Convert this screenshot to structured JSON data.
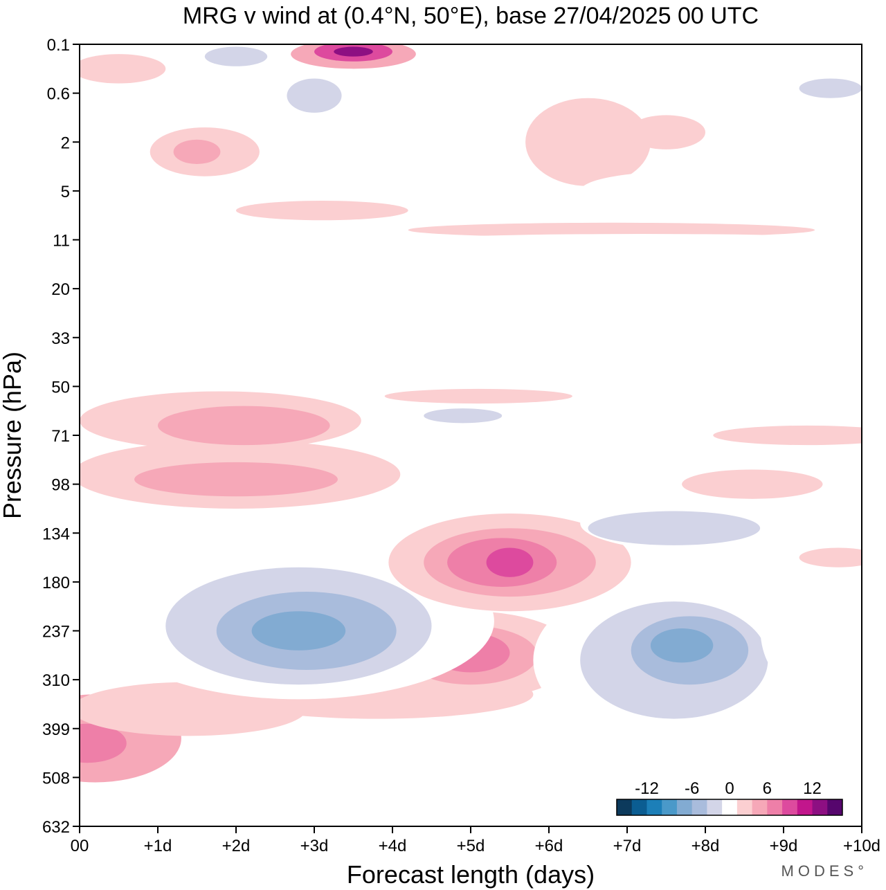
{
  "chart_data": {
    "type": "heatmap",
    "title": "MRG v wind at (0.4°N, 50°E),  base 27/04/2025  00 UTC",
    "xlabel": "Forecast length (days)",
    "ylabel": "Pressure (hPa)",
    "xlim": [
      0,
      10
    ],
    "x_ticks": [
      0,
      1,
      2,
      3,
      4,
      5,
      6,
      7,
      8,
      9,
      10
    ],
    "x_tick_labels": [
      "00",
      "+1d",
      "+2d",
      "+3d",
      "+4d",
      "+5d",
      "+6d",
      "+7d",
      "+8d",
      "+9d",
      "+10d"
    ],
    "y_ticks": [
      "0.1",
      "0.6",
      "2",
      "5",
      "11",
      "20",
      "33",
      "50",
      "71",
      "98",
      "134",
      "180",
      "237",
      "310",
      "399",
      "508",
      "632"
    ],
    "y_scale": "ordinal pressure levels (top to bottom)",
    "colorbar": {
      "tick_labels": [
        "-12",
        "-6",
        "0",
        "6",
        "12"
      ],
      "tick_values": [
        -12,
        -6,
        0,
        6,
        12
      ],
      "levels": [
        -16,
        -14,
        -12,
        -10,
        -8,
        -6,
        -4,
        -2,
        2,
        4,
        6,
        8,
        10,
        12,
        14,
        16
      ],
      "colors": [
        "#0c3a5c",
        "#0b5d92",
        "#1c7fb8",
        "#4a99c9",
        "#82abd2",
        "#a9bcdc",
        "#d3d5e8",
        "#ffffff",
        "#fbcfd1",
        "#f6a8b8",
        "#ee7fa8",
        "#dd4a9e",
        "#c2168c",
        "#8d0f82",
        "#56066d"
      ]
    },
    "contours": [
      {
        "value": 4,
        "x": 0.2,
        "y": 14.2,
        "rx": 1.1,
        "ry": 0.9
      },
      {
        "value": 6,
        "x": 0.1,
        "y": 14.3,
        "rx": 0.5,
        "ry": 0.4
      },
      {
        "value": 2,
        "x": 1.4,
        "y": 13.6,
        "rx": 1.5,
        "ry": 0.55
      },
      {
        "value": 2,
        "x": 3.8,
        "y": 13.3,
        "rx": 2.0,
        "ry": 0.5
      },
      {
        "value": 4,
        "x": 2.8,
        "y": 13.0,
        "rx": 0.9,
        "ry": 0.3
      },
      {
        "value": 2,
        "x": 5.0,
        "y": 12.5,
        "rx": 1.35,
        "ry": 0.9
      },
      {
        "value": 4,
        "x": 5.0,
        "y": 12.5,
        "rx": 0.85,
        "ry": 0.6
      },
      {
        "value": 6,
        "x": 5.0,
        "y": 12.45,
        "rx": 0.5,
        "ry": 0.4
      },
      {
        "value": -2,
        "x": 2.8,
        "y": 11.8,
        "rx": 2.5,
        "ry": 1.6
      },
      {
        "value": -4,
        "x": 2.8,
        "y": 11.9,
        "rx": 1.7,
        "ry": 1.2
      },
      {
        "value": -6,
        "x": 2.9,
        "y": 12.0,
        "rx": 1.15,
        "ry": 0.8
      },
      {
        "value": -8,
        "x": 2.8,
        "y": 12.0,
        "rx": 0.6,
        "ry": 0.4
      },
      {
        "value": -2,
        "x": 7.6,
        "y": 12.6,
        "rx": 1.8,
        "ry": 1.7
      },
      {
        "value": -4,
        "x": 7.6,
        "y": 12.6,
        "rx": 1.2,
        "ry": 1.2
      },
      {
        "value": -6,
        "x": 7.8,
        "y": 12.4,
        "rx": 0.75,
        "ry": 0.7
      },
      {
        "value": -8,
        "x": 7.7,
        "y": 12.3,
        "rx": 0.4,
        "ry": 0.35
      },
      {
        "value": 2,
        "x": 5.5,
        "y": 10.6,
        "rx": 1.55,
        "ry": 1.0
      },
      {
        "value": 4,
        "x": 5.5,
        "y": 10.6,
        "rx": 1.1,
        "ry": 0.7
      },
      {
        "value": 6,
        "x": 5.4,
        "y": 10.6,
        "rx": 0.7,
        "ry": 0.5
      },
      {
        "value": 8,
        "x": 5.5,
        "y": 10.6,
        "rx": 0.3,
        "ry": 0.3
      },
      {
        "value": -2,
        "x": 8.1,
        "y": 9.8,
        "rx": 1.7,
        "ry": 0.6
      },
      {
        "value": -4,
        "x": 7.6,
        "y": 9.9,
        "rx": 1.1,
        "ry": 0.35
      },
      {
        "value": 2,
        "x": 8.6,
        "y": 9.0,
        "rx": 0.9,
        "ry": 0.3
      },
      {
        "value": 2,
        "x": 2.0,
        "y": 8.8,
        "rx": 2.1,
        "ry": 0.7
      },
      {
        "value": 4,
        "x": 2.0,
        "y": 8.9,
        "rx": 1.3,
        "ry": 0.35
      },
      {
        "value": 2,
        "x": 1.8,
        "y": 7.7,
        "rx": 1.8,
        "ry": 0.6
      },
      {
        "value": 4,
        "x": 2.1,
        "y": 7.8,
        "rx": 1.1,
        "ry": 0.4
      },
      {
        "value": -2,
        "x": 5.2,
        "y": 7.4,
        "rx": 1.4,
        "ry": 0.6
      },
      {
        "value": -4,
        "x": 4.9,
        "y": 7.6,
        "rx": 0.5,
        "ry": 0.15
      },
      {
        "value": 2,
        "x": 9.3,
        "y": 8.0,
        "rx": 1.2,
        "ry": 0.2
      },
      {
        "value": -2,
        "x": 3.5,
        "y": 6.8,
        "rx": 1.2,
        "ry": 0.25
      },
      {
        "value": -2,
        "x": 1.0,
        "y": 3.5,
        "rx": 0.9,
        "ry": 0.25
      },
      {
        "value": 2,
        "x": 3.1,
        "y": 3.4,
        "rx": 1.1,
        "ry": 0.2
      },
      {
        "value": 2,
        "x": 6.8,
        "y": 3.8,
        "rx": 2.6,
        "ry": 0.15
      },
      {
        "value": -2,
        "x": 7.2,
        "y": 4.0,
        "rx": 2.8,
        "ry": 0.12
      },
      {
        "value": -2,
        "x": 6.3,
        "y": 6.6,
        "rx": 1.5,
        "ry": 0.2
      },
      {
        "value": 2,
        "x": 5.1,
        "y": 7.2,
        "rx": 1.2,
        "ry": 0.15
      },
      {
        "value": 2,
        "x": 1.6,
        "y": 2.2,
        "rx": 0.7,
        "ry": 0.5
      },
      {
        "value": 4,
        "x": 1.5,
        "y": 2.2,
        "rx": 0.3,
        "ry": 0.25
      },
      {
        "value": -2,
        "x": 0.6,
        "y": 2.9,
        "rx": 0.6,
        "ry": 0.2
      },
      {
        "value": 2,
        "x": 0.5,
        "y": 0.5,
        "rx": 0.6,
        "ry": 0.3
      },
      {
        "value": -2,
        "x": 2.1,
        "y": 0.3,
        "rx": 0.7,
        "ry": 0.3
      },
      {
        "value": -4,
        "x": 2.0,
        "y": 0.25,
        "rx": 0.4,
        "ry": 0.2
      },
      {
        "value": -2,
        "x": 3.0,
        "y": 1.1,
        "rx": 0.6,
        "ry": 0.55
      },
      {
        "value": -4,
        "x": 3.0,
        "y": 1.05,
        "rx": 0.35,
        "ry": 0.35
      },
      {
        "value": 4,
        "x": 3.5,
        "y": 0.2,
        "rx": 0.8,
        "ry": 0.3
      },
      {
        "value": 8,
        "x": 3.5,
        "y": 0.15,
        "rx": 0.5,
        "ry": 0.2
      },
      {
        "value": 12,
        "x": 3.5,
        "y": 0.15,
        "rx": 0.25,
        "ry": 0.1
      },
      {
        "value": -2,
        "x": 4.2,
        "y": 1.6,
        "rx": 0.5,
        "ry": 0.3
      },
      {
        "value": 2,
        "x": 6.5,
        "y": 2.0,
        "rx": 0.8,
        "ry": 0.9
      },
      {
        "value": 2,
        "x": 7.5,
        "y": 1.8,
        "rx": 0.5,
        "ry": 0.35
      },
      {
        "value": -2,
        "x": 7.0,
        "y": 0.6,
        "rx": 1.2,
        "ry": 0.25
      },
      {
        "value": -2,
        "x": 10.0,
        "y": 1.4,
        "rx": 1.2,
        "ry": 1.7
      },
      {
        "value": -4,
        "x": 9.6,
        "y": 0.9,
        "rx": 0.4,
        "ry": 0.2
      },
      {
        "value": -2,
        "x": 7.7,
        "y": 3.0,
        "rx": 1.3,
        "ry": 0.4
      },
      {
        "value": -2,
        "x": 9.0,
        "y": 11.9,
        "rx": 0.3,
        "ry": 1.0
      },
      {
        "value": -2,
        "x": 10.0,
        "y": 12.4,
        "rx": 0.5,
        "ry": 0.7
      },
      {
        "value": -2,
        "x": 4.6,
        "y": 16.0,
        "rx": 1.0,
        "ry": 0.7
      },
      {
        "value": 2,
        "x": 9.7,
        "y": 10.5,
        "rx": 0.5,
        "ry": 0.2
      }
    ]
  },
  "branding": {
    "text": "MODES°"
  }
}
